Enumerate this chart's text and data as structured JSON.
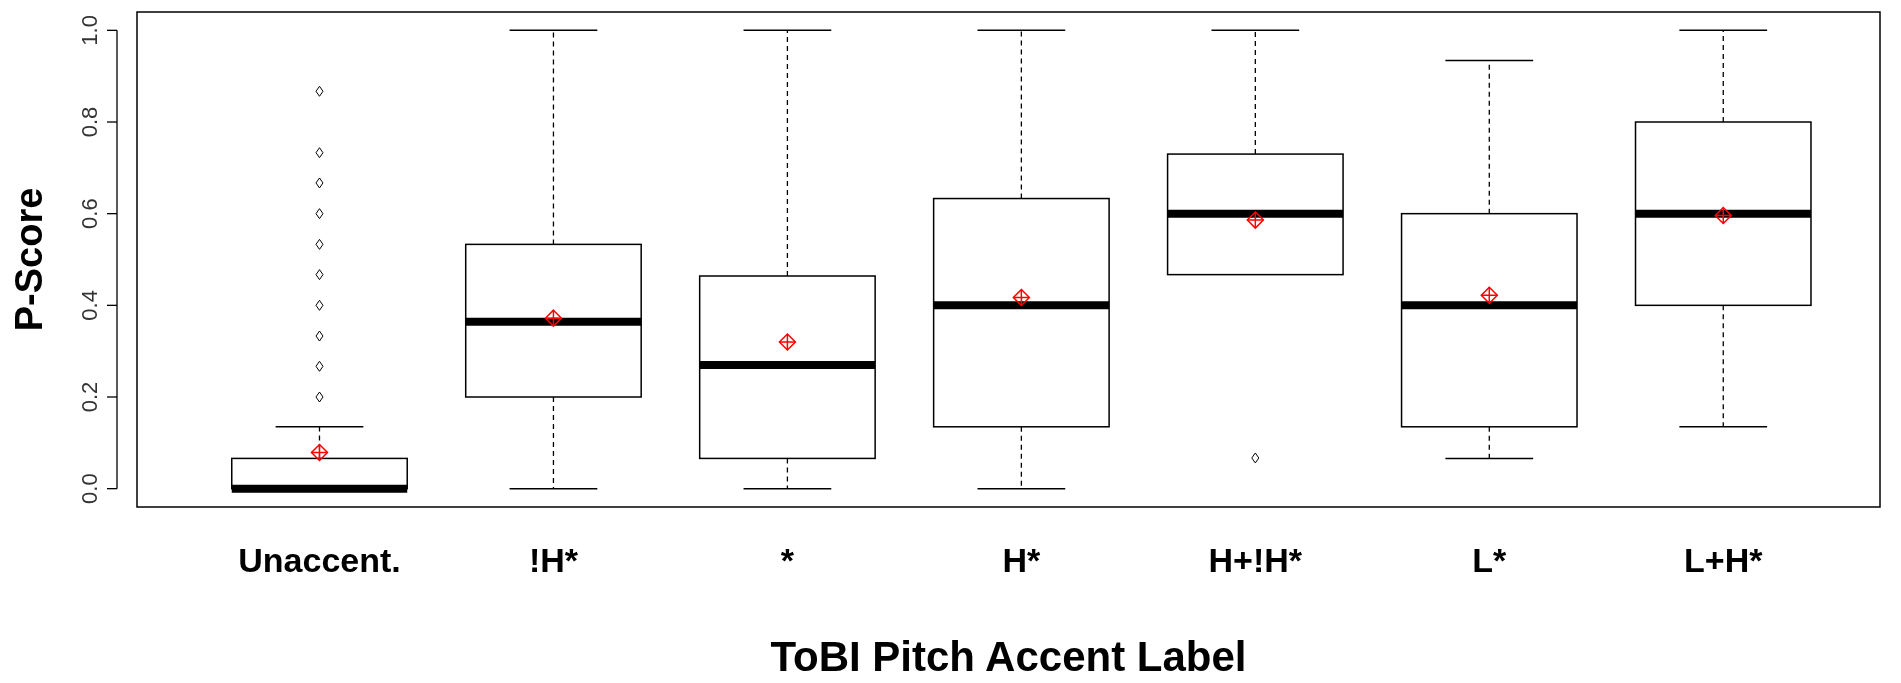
{
  "chart_data": {
    "type": "box",
    "xlabel": "ToBI Pitch Accent Label",
    "ylabel": "P-Score",
    "categories": [
      "Unaccent.",
      "!H*",
      "*",
      "H*",
      "H+!H*",
      "L*",
      "L+H*"
    ],
    "ylim": [
      -0.04,
      1.04
    ],
    "yticks": [
      {
        "value": 0,
        "label": "0.0"
      },
      0.2,
      0.4,
      0.6,
      0.8,
      {
        "value": 1,
        "label": "1.0"
      }
    ],
    "grid": false,
    "boxes": [
      {
        "low": 0,
        "q1": 0,
        "median": 0,
        "q3": 0.066,
        "high": 0.135,
        "outliers": [
          0.867,
          0.733,
          0.667,
          0.6,
          0.533,
          0.467,
          0.4,
          0.333,
          0.267,
          0.2
        ]
      },
      {
        "low": 0,
        "q1": 0.2,
        "median": 0.364,
        "q3": 0.533,
        "high": 1
      },
      {
        "low": 0,
        "q1": 0.066,
        "median": 0.27,
        "q3": 0.464,
        "high": 1
      },
      {
        "low": 0,
        "q1": 0.135,
        "median": 0.4,
        "q3": 0.633,
        "high": 1
      },
      {
        "low": 0.467,
        "q1": 0.467,
        "median": 0.6,
        "q3": 0.73,
        "high": 1,
        "outliers": [
          0.067
        ]
      },
      {
        "low": 0.066,
        "q1": 0.135,
        "median": 0.4,
        "q3": 0.6,
        "high": 0.934
      },
      {
        "low": 0.135,
        "q1": 0.4,
        "median": 0.6,
        "q3": 0.8,
        "high": 1
      }
    ],
    "series": [
      {
        "type": "scatter",
        "color": "#ff0000",
        "marker": "diamond",
        "x": [
          "Unaccent.",
          "!H*",
          "*",
          "H*",
          "H+!H*",
          "L*",
          "L+H*"
        ],
        "values": [
          0.079,
          0.372,
          0.32,
          0.417,
          0.586,
          0.422,
          0.596
        ]
      }
    ]
  }
}
